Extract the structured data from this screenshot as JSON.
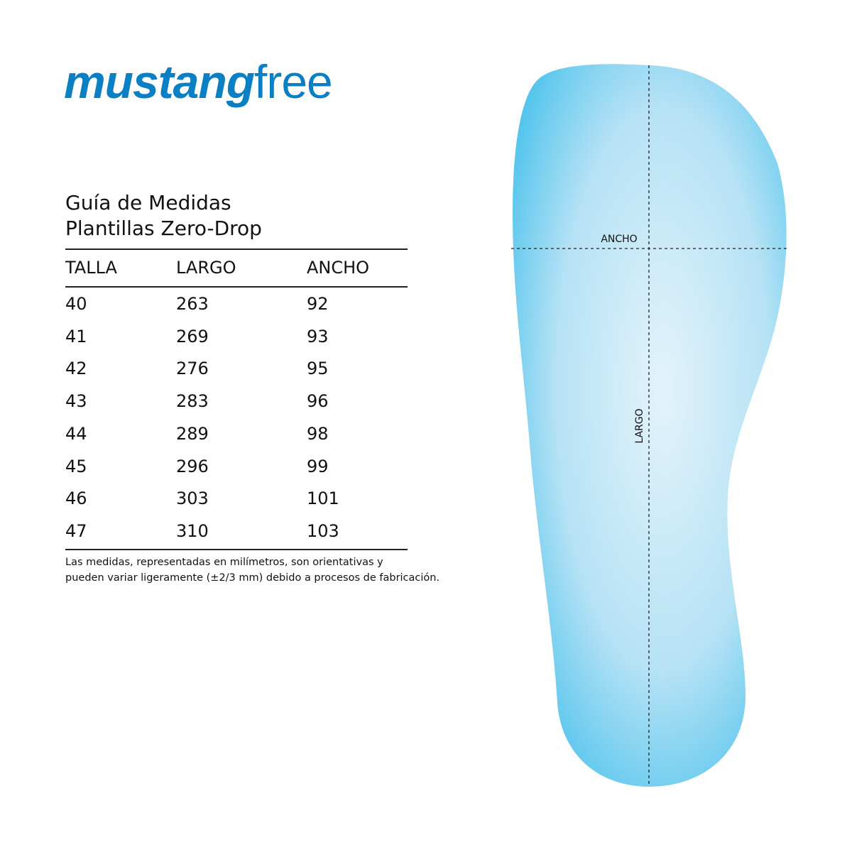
{
  "brand": {
    "logo_bold": "mustang",
    "logo_light": "free",
    "color": "#0a7fc4"
  },
  "title": {
    "line1": "Guía de Medidas",
    "line2": "Plantillas Zero-Drop"
  },
  "table": {
    "headers": [
      "TALLA",
      "LARGO",
      "ANCHO"
    ],
    "rows": [
      [
        "40",
        "263",
        "92"
      ],
      [
        "41",
        "269",
        "93"
      ],
      [
        "42",
        "276",
        "95"
      ],
      [
        "43",
        "283",
        "96"
      ],
      [
        "44",
        "289",
        "98"
      ],
      [
        "45",
        "296",
        "99"
      ],
      [
        "46",
        "303",
        "101"
      ],
      [
        "47",
        "310",
        "103"
      ]
    ]
  },
  "note": {
    "line1": "Las medidas, representadas en milímetros, son orientativas y",
    "line2": "pueden variar ligeramente (±2/3 mm) debido a procesos de fabricación."
  },
  "diagram": {
    "width_label": "ANCHO",
    "length_label": "LARGO",
    "insole_color": "#4fc3ec"
  }
}
